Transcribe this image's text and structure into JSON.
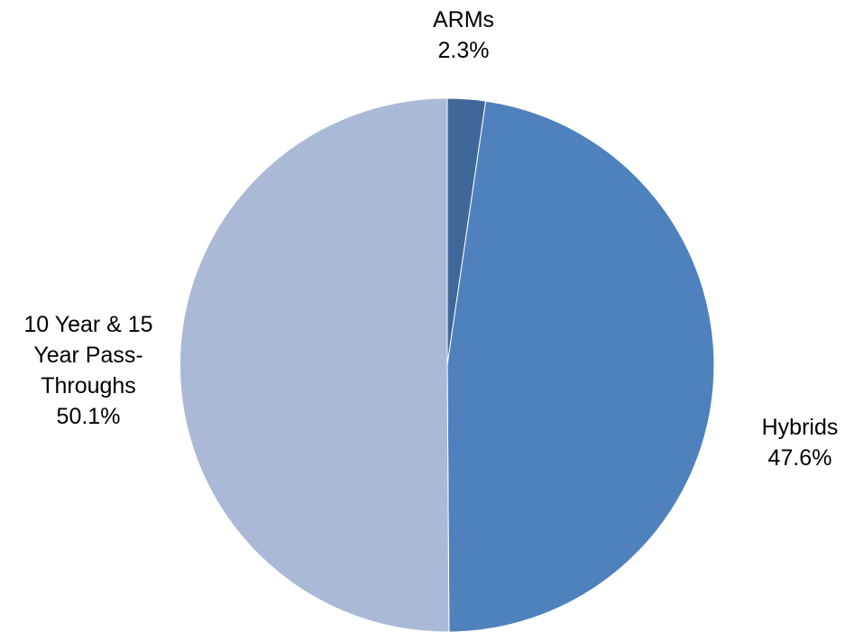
{
  "chart_data": {
    "type": "pie",
    "title": "",
    "slices": [
      {
        "name": "ARMs",
        "value": 2.3,
        "display_value": "2.3%",
        "label_lines": [
          "ARMs"
        ],
        "color": "#3F679A"
      },
      {
        "name": "Hybrids",
        "value": 47.6,
        "display_value": "47.6%",
        "label_lines": [
          "Hybrids"
        ],
        "color": "#4F81BD"
      },
      {
        "name": "10 Year & 15 Year Pass-Throughs",
        "value": 50.1,
        "display_value": "50.1%",
        "label_lines": [
          "10 Year & 15",
          "Year Pass-",
          "Throughs"
        ],
        "color": "#AAB9D6"
      }
    ],
    "start_angle": "12 o'clock",
    "direction": "clockwise",
    "legend": "none",
    "labels": "outside"
  }
}
